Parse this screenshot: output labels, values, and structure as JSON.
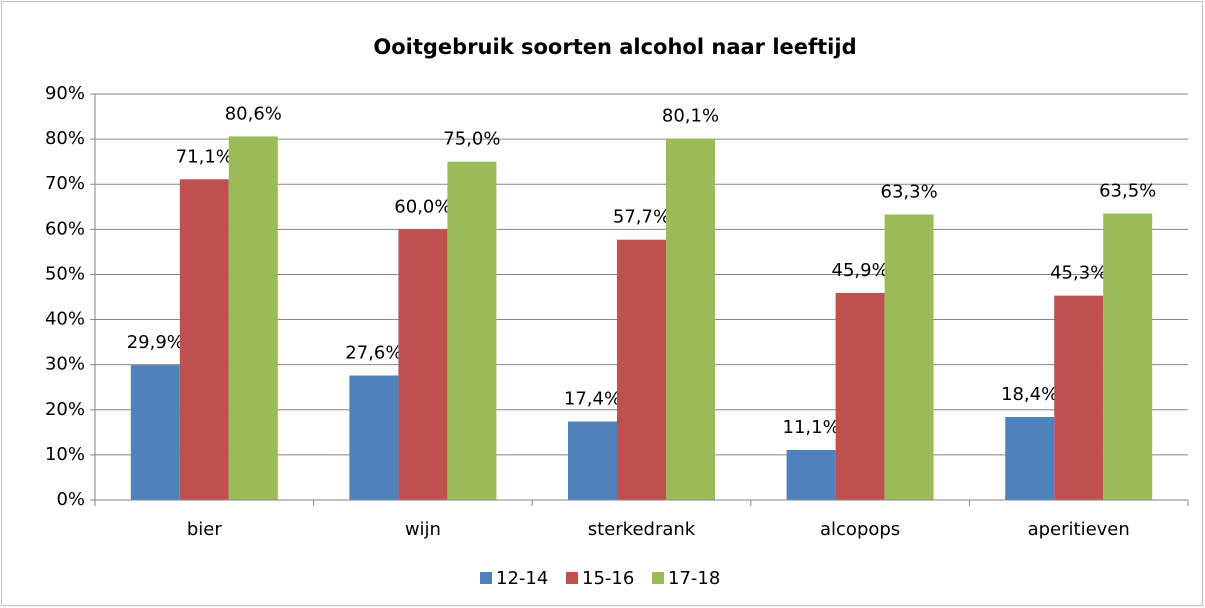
{
  "chart_data": {
    "type": "bar",
    "title": "Ooitgebruik soorten alcohol naar leeftijd",
    "categories": [
      "bier",
      "wijn",
      "sterkedrank",
      "alcopops",
      "aperitieven"
    ],
    "series": [
      {
        "name": "12-14",
        "color": "#4f81bd",
        "values": [
          29.9,
          27.6,
          17.4,
          11.1,
          18.4
        ],
        "value_labels": [
          "29,9%",
          "27,6%",
          "17,4%",
          "11,1%",
          "18,4%"
        ]
      },
      {
        "name": "15-16",
        "color": "#c0504d",
        "values": [
          71.1,
          60.0,
          57.7,
          45.9,
          45.3
        ],
        "value_labels": [
          "71,1%",
          "60,0%",
          "57,7%",
          "45,9%",
          "45,3%"
        ]
      },
      {
        "name": "17-18",
        "color": "#9bbb59",
        "values": [
          80.6,
          75.0,
          80.1,
          63.3,
          63.5
        ],
        "value_labels": [
          "80,6%",
          "75,0%",
          "80,1%",
          "63,3%",
          "63,5%"
        ]
      }
    ],
    "ylim": [
      0,
      90
    ],
    "yticks": [
      {
        "value": 0,
        "label": "0%"
      },
      {
        "value": 10,
        "label": "10%"
      },
      {
        "value": 20,
        "label": "20%"
      },
      {
        "value": 30,
        "label": "30%"
      },
      {
        "value": 40,
        "label": "40%"
      },
      {
        "value": 50,
        "label": "50%"
      },
      {
        "value": 60,
        "label": "60%"
      },
      {
        "value": 70,
        "label": "70%"
      },
      {
        "value": 80,
        "label": "80%"
      },
      {
        "value": 90,
        "label": "90%"
      }
    ],
    "grid": true,
    "legend": "bottom"
  }
}
